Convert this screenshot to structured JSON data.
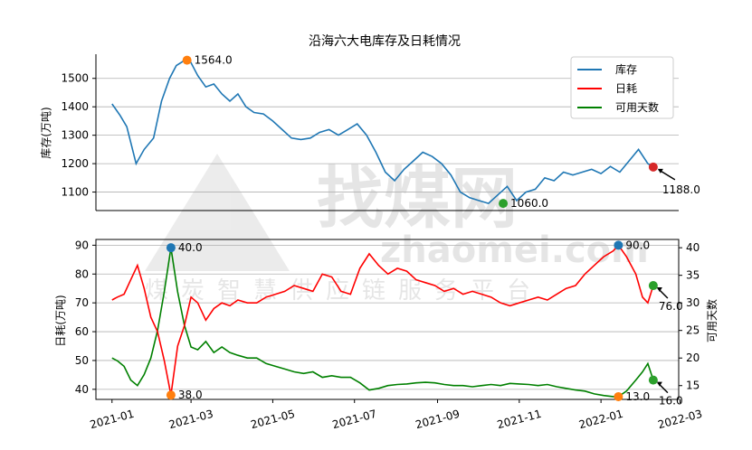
{
  "chart_data": [
    {
      "type": "line",
      "title": "沿海六大电库存及日耗情况",
      "ylabel": "库存(万吨)",
      "xlim": [
        "2020-12-20",
        "2022-02-28"
      ],
      "ylim": [
        1035,
        1585
      ],
      "yticks": [
        1100,
        1200,
        1300,
        1400,
        1500
      ],
      "grid": "horizontal",
      "legend_position": "top-right",
      "legend": [
        "库存",
        "日耗",
        "可用天数"
      ],
      "series": [
        {
          "name": "库存",
          "color": "#1f77b4",
          "x": [
            "2021-01-01",
            "2021-01-07",
            "2021-01-12",
            "2021-01-19",
            "2021-01-25",
            "2021-02-01",
            "2021-02-07",
            "2021-02-13",
            "2021-02-18",
            "2021-02-23",
            "2021-02-28",
            "2021-03-06",
            "2021-03-12",
            "2021-03-18",
            "2021-03-24",
            "2021-03-30",
            "2021-04-05",
            "2021-04-11",
            "2021-04-17",
            "2021-04-24",
            "2021-05-01",
            "2021-05-08",
            "2021-05-15",
            "2021-05-22",
            "2021-05-29",
            "2021-06-05",
            "2021-06-12",
            "2021-06-19",
            "2021-06-26",
            "2021-07-03",
            "2021-07-10",
            "2021-07-17",
            "2021-07-24",
            "2021-07-31",
            "2021-08-07",
            "2021-08-14",
            "2021-08-21",
            "2021-08-28",
            "2021-09-04",
            "2021-09-11",
            "2021-09-18",
            "2021-09-25",
            "2021-10-02",
            "2021-10-09",
            "2021-10-16",
            "2021-10-23",
            "2021-10-30",
            "2021-11-06",
            "2021-11-13",
            "2021-11-20",
            "2021-11-27",
            "2021-12-04",
            "2021-12-11",
            "2021-12-18",
            "2021-12-25",
            "2022-01-01",
            "2022-01-08",
            "2022-01-15",
            "2022-01-22",
            "2022-01-29",
            "2022-02-05",
            "2022-02-09"
          ],
          "values": [
            1410,
            1370,
            1330,
            1200,
            1250,
            1290,
            1420,
            1500,
            1545,
            1560,
            1564,
            1510,
            1470,
            1480,
            1445,
            1420,
            1445,
            1400,
            1380,
            1375,
            1350,
            1320,
            1290,
            1285,
            1290,
            1310,
            1320,
            1300,
            1320,
            1340,
            1300,
            1240,
            1170,
            1140,
            1180,
            1210,
            1240,
            1225,
            1200,
            1160,
            1100,
            1080,
            1070,
            1060,
            1090,
            1120,
            1070,
            1100,
            1110,
            1150,
            1140,
            1170,
            1160,
            1170,
            1180,
            1165,
            1190,
            1170,
            1210,
            1250,
            1200,
            1188
          ]
        },
        {
          "name": "可用天数",
          "color": "#2ca02c",
          "x": [],
          "values": []
        }
      ],
      "annotations": [
        {
          "text": "1564.0",
          "x": "2021-02-26",
          "y": 1564,
          "color": "#ff7f0e"
        },
        {
          "text": "1060.0",
          "x": "2021-10-20",
          "y": 1060,
          "color": "#2ca02c"
        },
        {
          "text": "1188.0",
          "x": "2022-02-09",
          "y": 1188,
          "color": "#d62728"
        }
      ]
    },
    {
      "type": "line",
      "ylabel": "日耗(万吨)",
      "ylabel_right": "可用天数",
      "xlabel": "",
      "xticks": [
        "2021-01",
        "2021-03",
        "2021-05",
        "2021-07",
        "2021-09",
        "2021-11",
        "2022-01",
        "2022-03"
      ],
      "xlim": [
        "2020-12-20",
        "2022-02-28"
      ],
      "ylim": [
        36.5,
        92
      ],
      "yticks": [
        40,
        50,
        60,
        70,
        80,
        90
      ],
      "ylim_right": [
        12.5,
        41.5
      ],
      "yticks_right": [
        15,
        20,
        25,
        30,
        35,
        40
      ],
      "grid": "horizontal",
      "series": [
        {
          "name": "日耗",
          "color": "#ff0000",
          "axis": "left",
          "x": [
            "2021-01-01",
            "2021-01-05",
            "2021-01-10",
            "2021-01-15",
            "2021-01-20",
            "2021-01-25",
            "2021-01-30",
            "2021-02-04",
            "2021-02-09",
            "2021-02-14",
            "2021-02-19",
            "2021-02-24",
            "2021-03-01",
            "2021-03-06",
            "2021-03-12",
            "2021-03-18",
            "2021-03-24",
            "2021-03-30",
            "2021-04-05",
            "2021-04-12",
            "2021-04-19",
            "2021-04-26",
            "2021-05-03",
            "2021-05-10",
            "2021-05-17",
            "2021-05-24",
            "2021-05-31",
            "2021-06-07",
            "2021-06-14",
            "2021-06-21",
            "2021-06-28",
            "2021-07-05",
            "2021-07-12",
            "2021-07-19",
            "2021-07-26",
            "2021-08-02",
            "2021-08-09",
            "2021-08-16",
            "2021-08-23",
            "2021-08-30",
            "2021-09-06",
            "2021-09-13",
            "2021-09-20",
            "2021-09-27",
            "2021-10-04",
            "2021-10-11",
            "2021-10-18",
            "2021-10-25",
            "2021-11-01",
            "2021-11-08",
            "2021-11-15",
            "2021-11-22",
            "2021-11-29",
            "2021-12-06",
            "2021-12-13",
            "2021-12-20",
            "2021-12-27",
            "2022-01-03",
            "2022-01-10",
            "2022-01-14",
            "2022-01-20",
            "2022-01-27",
            "2022-02-01",
            "2022-02-05",
            "2022-02-09"
          ],
          "values": [
            71,
            72,
            73,
            78,
            83,
            75,
            65,
            60,
            50,
            38,
            55,
            62,
            72,
            70,
            64,
            68,
            70,
            69,
            71,
            70,
            70,
            72,
            73,
            74,
            76,
            75,
            74,
            80,
            79,
            74,
            73,
            82,
            87,
            83,
            80,
            82,
            81,
            78,
            77,
            76,
            74,
            75,
            73,
            74,
            73,
            72,
            70,
            69,
            70,
            71,
            72,
            71,
            73,
            75,
            76,
            80,
            83,
            86,
            88,
            90,
            86,
            80,
            72,
            70,
            76
          ]
        },
        {
          "name": "可用天数",
          "color": "#008000",
          "axis": "right",
          "x": [
            "2021-01-01",
            "2021-01-05",
            "2021-01-10",
            "2021-01-15",
            "2021-01-20",
            "2021-01-25",
            "2021-01-30",
            "2021-02-04",
            "2021-02-09",
            "2021-02-14",
            "2021-02-19",
            "2021-02-24",
            "2021-03-01",
            "2021-03-06",
            "2021-03-12",
            "2021-03-18",
            "2021-03-24",
            "2021-03-30",
            "2021-04-05",
            "2021-04-12",
            "2021-04-19",
            "2021-04-26",
            "2021-05-03",
            "2021-05-10",
            "2021-05-17",
            "2021-05-24",
            "2021-05-31",
            "2021-06-07",
            "2021-06-14",
            "2021-06-21",
            "2021-06-28",
            "2021-07-05",
            "2021-07-12",
            "2021-07-19",
            "2021-07-26",
            "2021-08-02",
            "2021-08-09",
            "2021-08-16",
            "2021-08-23",
            "2021-08-30",
            "2021-09-06",
            "2021-09-13",
            "2021-09-20",
            "2021-09-27",
            "2021-10-04",
            "2021-10-11",
            "2021-10-18",
            "2021-10-25",
            "2021-11-01",
            "2021-11-08",
            "2021-11-15",
            "2021-11-22",
            "2021-11-29",
            "2021-12-06",
            "2021-12-13",
            "2021-12-20",
            "2021-12-27",
            "2022-01-03",
            "2022-01-10",
            "2022-01-14",
            "2022-01-20",
            "2022-01-27",
            "2022-02-01",
            "2022-02-05",
            "2022-02-09"
          ],
          "values": [
            20,
            19.5,
            18.5,
            16,
            15,
            17,
            20,
            25,
            32,
            40,
            32,
            26,
            22,
            21.5,
            23,
            21,
            22,
            21,
            20.5,
            20,
            20,
            19,
            18.5,
            18,
            17.5,
            17.2,
            17.5,
            16.5,
            16.8,
            16.5,
            16.5,
            15.5,
            14.2,
            14.5,
            15,
            15.2,
            15.3,
            15.5,
            15.6,
            15.5,
            15.2,
            15,
            15,
            14.8,
            15,
            15.2,
            15,
            15.4,
            15.3,
            15.2,
            15,
            15.2,
            14.8,
            14.5,
            14.2,
            14,
            13.5,
            13.2,
            13,
            13,
            14,
            16,
            17.5,
            19,
            16
          ]
        }
      ],
      "annotations": [
        {
          "text": "40.0",
          "x": "2021-02-14",
          "y": 40,
          "axis": "right",
          "color": "#1f77b4"
        },
        {
          "text": "38.0",
          "x": "2021-02-14",
          "y": 38,
          "axis": "left",
          "color": "#ff7f0e"
        },
        {
          "text": "90.0",
          "x": "2022-01-14",
          "y": 90,
          "axis": "left",
          "color": "#1f77b4"
        },
        {
          "text": "13.0",
          "x": "2022-01-14",
          "y": 13,
          "axis": "right",
          "color": "#ff7f0e"
        },
        {
          "text": "76.0",
          "x": "2022-02-09",
          "y": 76,
          "axis": "left",
          "color": "#2ca02c"
        },
        {
          "text": "16.0",
          "x": "2022-02-09",
          "y": 16,
          "axis": "right",
          "color": "#2ca02c"
        }
      ]
    }
  ],
  "watermark": {
    "text_main": "找煤网",
    "text_url": "zhaomei.com",
    "text_slogan": "煤炭智慧供应链服务平台"
  }
}
